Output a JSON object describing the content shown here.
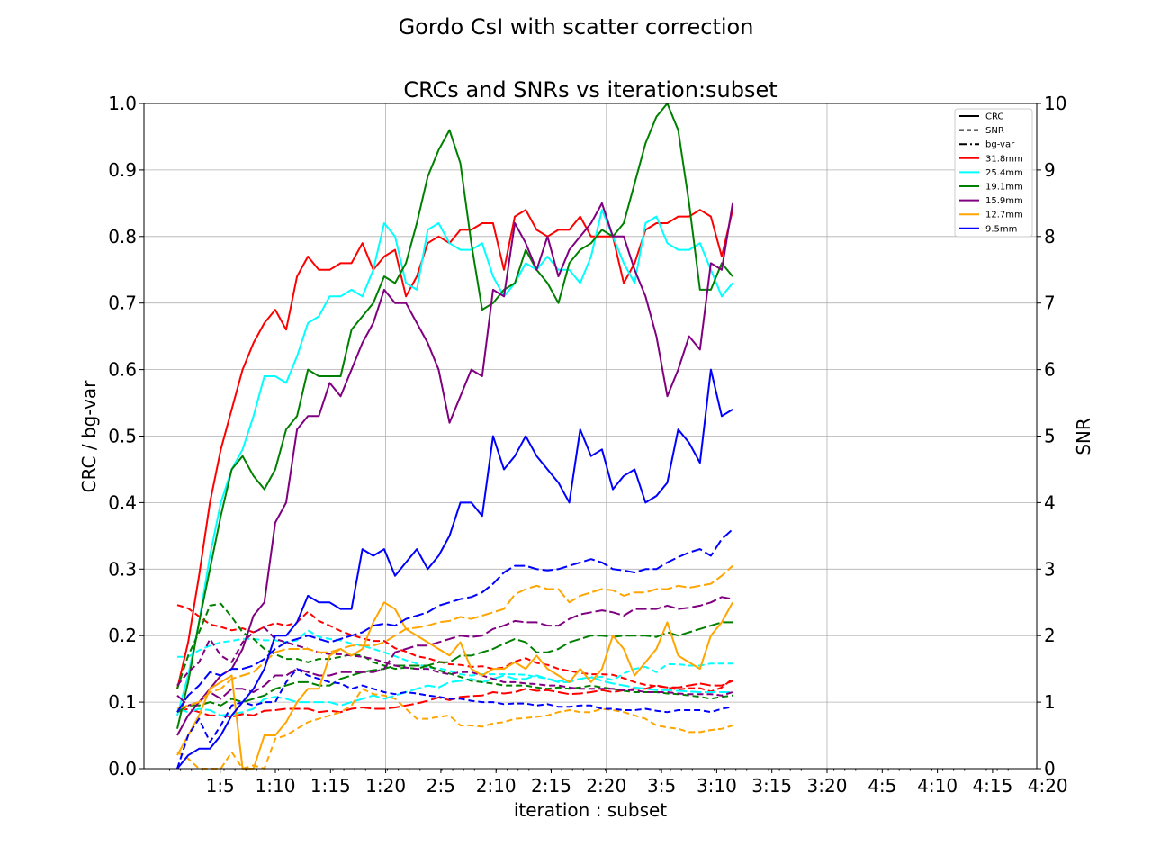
{
  "chart_data": {
    "suptitle": "Gordo CsI with scatter correction",
    "title": "CRCs and SNRs vs iteration:subset",
    "xlabel": "iteration : subset",
    "ylabel_left": "CRC / bg-var",
    "ylabel_right": "SNR",
    "ylim_left": [
      0,
      1
    ],
    "ylim_right": [
      0,
      10
    ],
    "yticks_left": [
      "0.0",
      "0.1",
      "0.2",
      "0.3",
      "0.4",
      "0.5",
      "0.6",
      "0.7",
      "0.8",
      "0.9",
      "1.0"
    ],
    "yticks_right": [
      "0",
      "1",
      "2",
      "3",
      "4",
      "5",
      "6",
      "7",
      "8",
      "9",
      "10"
    ],
    "xtick_labels": [
      "1:5",
      "1:10",
      "1:15",
      "1:20",
      "2:5",
      "2:10",
      "2:15",
      "2:20",
      "3:5",
      "3:10",
      "3:15",
      "3:20",
      "4:5",
      "4:10",
      "4:15",
      "4:20"
    ],
    "grid": true,
    "legend_position": "top-right",
    "legend_style_entries": [
      {
        "label": "CRC",
        "dash": "solid"
      },
      {
        "label": "SNR",
        "dash": "dashed"
      },
      {
        "label": "bg-var",
        "dash": "dashdot"
      }
    ],
    "series": [
      {
        "name": "31.8mm",
        "color": "#ff0000",
        "crc": [
          0.12,
          0.19,
          0.29,
          0.4,
          0.48,
          0.54,
          0.6,
          0.64,
          0.67,
          0.69,
          0.66,
          0.74,
          0.77,
          0.75,
          0.75,
          0.76,
          0.76,
          0.79,
          0.75,
          0.77,
          0.78,
          0.71,
          0.74,
          0.79,
          0.8,
          0.79,
          0.81,
          0.81,
          0.82,
          0.82,
          0.75,
          0.83,
          0.84,
          0.81,
          0.8,
          0.81,
          0.81,
          0.83,
          0.8,
          0.8,
          0.8,
          0.73,
          0.76,
          0.81,
          0.82,
          0.82,
          0.83,
          0.83,
          0.84,
          0.83,
          0.77,
          0.84
        ],
        "snr": [
          2.46,
          2.41,
          2.29,
          2.17,
          2.13,
          2.08,
          2.11,
          2.05,
          2.13,
          2.19,
          2.15,
          2.2,
          2.36,
          2.22,
          2.15,
          2.07,
          2.01,
          1.96,
          1.92,
          1.92,
          1.81,
          1.76,
          1.69,
          1.66,
          1.61,
          1.57,
          1.56,
          1.53,
          1.54,
          1.5,
          1.52,
          1.61,
          1.66,
          1.59,
          1.56,
          1.5,
          1.47,
          1.44,
          1.42,
          1.42,
          1.41,
          1.36,
          1.3,
          1.26,
          1.24,
          1.22,
          1.19,
          1.21,
          1.21,
          1.16,
          1.22,
          1.35
        ],
        "bgvar": [
          0.085,
          0.09,
          0.085,
          0.08,
          0.08,
          0.078,
          0.082,
          0.08,
          0.087,
          0.088,
          0.09,
          0.09,
          0.09,
          0.085,
          0.087,
          0.085,
          0.09,
          0.092,
          0.09,
          0.09,
          0.092,
          0.095,
          0.098,
          0.102,
          0.107,
          0.103,
          0.108,
          0.109,
          0.11,
          0.115,
          0.113,
          0.115,
          0.12,
          0.117,
          0.118,
          0.115,
          0.112,
          0.113,
          0.115,
          0.118,
          0.115,
          0.118,
          0.12,
          0.12,
          0.125,
          0.122,
          0.122,
          0.125,
          0.128,
          0.125,
          0.125,
          0.132
        ]
      },
      {
        "name": "25.4mm",
        "color": "#00ffff",
        "crc": [
          0.08,
          0.14,
          0.22,
          0.32,
          0.4,
          0.45,
          0.48,
          0.53,
          0.59,
          0.59,
          0.58,
          0.62,
          0.67,
          0.68,
          0.71,
          0.71,
          0.72,
          0.71,
          0.75,
          0.82,
          0.8,
          0.73,
          0.72,
          0.81,
          0.82,
          0.79,
          0.78,
          0.78,
          0.79,
          0.74,
          0.71,
          0.73,
          0.76,
          0.75,
          0.77,
          0.75,
          0.75,
          0.73,
          0.77,
          0.84,
          0.8,
          0.76,
          0.73,
          0.82,
          0.83,
          0.79,
          0.78,
          0.78,
          0.79,
          0.75,
          0.71,
          0.73
        ],
        "snr": [
          1.68,
          1.68,
          1.78,
          1.85,
          1.9,
          1.92,
          1.95,
          1.95,
          1.93,
          1.93,
          1.9,
          1.93,
          2.08,
          1.98,
          1.95,
          1.93,
          1.88,
          1.85,
          1.8,
          1.75,
          1.69,
          1.63,
          1.58,
          1.52,
          1.51,
          1.47,
          1.42,
          1.4,
          1.42,
          1.42,
          1.42,
          1.42,
          1.41,
          1.38,
          1.35,
          1.32,
          1.32,
          1.35,
          1.37,
          1.38,
          1.33,
          1.43,
          1.5,
          1.53,
          1.45,
          1.57,
          1.57,
          1.55,
          1.55,
          1.58,
          1.58,
          1.58
        ],
        "bgvar": [
          0.09,
          0.085,
          0.09,
          0.088,
          0.08,
          0.082,
          0.085,
          0.09,
          0.105,
          0.108,
          0.105,
          0.1,
          0.1,
          0.1,
          0.1,
          0.095,
          0.1,
          0.105,
          0.11,
          0.105,
          0.11,
          0.115,
          0.12,
          0.125,
          0.122,
          0.13,
          0.132,
          0.135,
          0.13,
          0.135,
          0.14,
          0.135,
          0.135,
          0.14,
          0.135,
          0.13,
          0.13,
          0.135,
          0.138,
          0.132,
          0.128,
          0.125,
          0.122,
          0.12,
          0.118,
          0.118,
          0.117,
          0.116,
          0.115,
          0.115,
          0.115,
          0.115
        ]
      },
      {
        "name": "19.1mm",
        "color": "#008000",
        "crc": [
          0.06,
          0.13,
          0.22,
          0.3,
          0.38,
          0.45,
          0.47,
          0.44,
          0.42,
          0.45,
          0.51,
          0.53,
          0.6,
          0.59,
          0.59,
          0.59,
          0.66,
          0.68,
          0.7,
          0.74,
          0.73,
          0.76,
          0.82,
          0.89,
          0.93,
          0.96,
          0.91,
          0.79,
          0.69,
          0.7,
          0.72,
          0.73,
          0.78,
          0.75,
          0.73,
          0.7,
          0.76,
          0.78,
          0.79,
          0.81,
          0.8,
          0.82,
          0.88,
          0.94,
          0.98,
          1.0,
          0.96,
          0.85,
          0.72,
          0.72,
          0.76,
          0.74
        ],
        "snr": [
          1.2,
          1.7,
          2.05,
          2.45,
          2.48,
          2.28,
          2.05,
          1.95,
          1.8,
          1.72,
          1.65,
          1.65,
          1.6,
          1.65,
          1.65,
          1.68,
          1.72,
          1.7,
          1.6,
          1.55,
          1.5,
          1.52,
          1.5,
          1.55,
          1.48,
          1.43,
          1.38,
          1.32,
          1.3,
          1.28,
          1.25,
          1.25,
          1.25,
          1.22,
          1.2,
          1.22,
          1.2,
          1.22,
          1.25,
          1.22,
          1.2,
          1.17,
          1.15,
          1.15,
          1.15,
          1.13,
          1.12,
          1.1,
          1.08,
          1.05,
          1.08,
          1.1
        ],
        "bgvar": [
          0.085,
          0.095,
          0.095,
          0.1,
          0.095,
          0.105,
          0.1,
          0.105,
          0.11,
          0.12,
          0.125,
          0.13,
          0.13,
          0.125,
          0.125,
          0.135,
          0.14,
          0.145,
          0.148,
          0.15,
          0.155,
          0.155,
          0.155,
          0.155,
          0.16,
          0.16,
          0.17,
          0.17,
          0.175,
          0.18,
          0.188,
          0.195,
          0.19,
          0.175,
          0.175,
          0.18,
          0.19,
          0.195,
          0.2,
          0.2,
          0.198,
          0.2,
          0.2,
          0.2,
          0.198,
          0.205,
          0.2,
          0.205,
          0.21,
          0.215,
          0.22,
          0.22
        ]
      },
      {
        "name": "15.9mm",
        "color": "#800080",
        "crc": [
          0.05,
          0.08,
          0.1,
          0.12,
          0.14,
          0.15,
          0.18,
          0.23,
          0.25,
          0.37,
          0.4,
          0.51,
          0.53,
          0.53,
          0.58,
          0.56,
          0.6,
          0.64,
          0.67,
          0.72,
          0.7,
          0.7,
          0.67,
          0.64,
          0.6,
          0.52,
          0.56,
          0.6,
          0.59,
          0.72,
          0.71,
          0.82,
          0.79,
          0.75,
          0.8,
          0.74,
          0.78,
          0.8,
          0.82,
          0.85,
          0.8,
          0.8,
          0.75,
          0.71,
          0.65,
          0.56,
          0.6,
          0.65,
          0.63,
          0.76,
          0.75,
          0.85
        ],
        "snr": [
          1.25,
          1.45,
          1.6,
          1.95,
          1.7,
          1.6,
          1.9,
          2.05,
          2.12,
          1.95,
          1.9,
          1.85,
          1.8,
          1.75,
          1.72,
          1.72,
          1.7,
          1.68,
          1.65,
          1.6,
          1.55,
          1.52,
          1.5,
          1.5,
          1.45,
          1.42,
          1.45,
          1.45,
          1.4,
          1.35,
          1.3,
          1.3,
          1.28,
          1.27,
          1.25,
          1.25,
          1.22,
          1.2,
          1.2,
          1.2,
          1.2,
          1.18,
          1.18,
          1.15,
          1.15,
          1.15,
          1.13,
          1.12,
          1.12,
          1.12,
          1.1,
          1.15
        ],
        "bgvar": [
          0.11,
          0.095,
          0.1,
          0.115,
          0.105,
          0.12,
          0.12,
          0.115,
          0.125,
          0.14,
          0.14,
          0.15,
          0.145,
          0.14,
          0.14,
          0.145,
          0.145,
          0.145,
          0.145,
          0.15,
          0.175,
          0.18,
          0.185,
          0.185,
          0.19,
          0.195,
          0.2,
          0.198,
          0.2,
          0.21,
          0.215,
          0.222,
          0.22,
          0.22,
          0.215,
          0.215,
          0.225,
          0.232,
          0.235,
          0.238,
          0.235,
          0.23,
          0.24,
          0.24,
          0.24,
          0.245,
          0.24,
          0.242,
          0.245,
          0.25,
          0.258,
          0.255
        ]
      },
      {
        "name": "12.7mm",
        "color": "#ffa500",
        "crc": [
          0.02,
          0.05,
          0.08,
          0.12,
          0.13,
          0.14,
          0.0,
          0.0,
          0.05,
          0.05,
          0.07,
          0.1,
          0.12,
          0.12,
          0.17,
          0.18,
          0.17,
          0.18,
          0.22,
          0.25,
          0.24,
          0.21,
          0.2,
          0.19,
          0.18,
          0.17,
          0.19,
          0.15,
          0.14,
          0.15,
          0.15,
          0.16,
          0.15,
          0.17,
          0.15,
          0.14,
          0.13,
          0.15,
          0.13,
          0.15,
          0.2,
          0.18,
          0.14,
          0.16,
          0.18,
          0.22,
          0.17,
          0.16,
          0.15,
          0.2,
          0.22,
          0.25
        ],
        "snr": [
          0.25,
          0.15,
          0.0,
          0.0,
          0.0,
          0.25,
          0.0,
          0.05,
          0.0,
          0.45,
          0.5,
          0.6,
          0.7,
          0.75,
          0.8,
          0.85,
          0.95,
          1.2,
          1.12,
          1.1,
          1.05,
          0.9,
          0.75,
          0.75,
          0.78,
          0.8,
          0.65,
          0.65,
          0.63,
          0.68,
          0.7,
          0.75,
          0.76,
          0.78,
          0.8,
          0.85,
          0.88,
          0.85,
          0.85,
          0.9,
          0.88,
          0.85,
          0.8,
          0.75,
          0.65,
          0.62,
          0.6,
          0.55,
          0.55,
          0.58,
          0.6,
          0.65
        ],
        "bgvar": [
          0.09,
          0.095,
          0.1,
          0.115,
          0.12,
          0.135,
          0.14,
          0.145,
          0.16,
          0.175,
          0.18,
          0.18,
          0.18,
          0.175,
          0.175,
          0.18,
          0.185,
          0.185,
          0.185,
          0.19,
          0.2,
          0.21,
          0.212,
          0.215,
          0.22,
          0.222,
          0.228,
          0.225,
          0.23,
          0.235,
          0.24,
          0.262,
          0.27,
          0.275,
          0.27,
          0.27,
          0.25,
          0.26,
          0.265,
          0.27,
          0.268,
          0.26,
          0.265,
          0.265,
          0.27,
          0.27,
          0.275,
          0.272,
          0.275,
          0.278,
          0.29,
          0.305
        ]
      },
      {
        "name": "9.5mm",
        "color": "#0000ff",
        "crc": [
          0.0,
          0.02,
          0.03,
          0.03,
          0.05,
          0.08,
          0.1,
          0.12,
          0.15,
          0.2,
          0.2,
          0.22,
          0.26,
          0.25,
          0.25,
          0.24,
          0.24,
          0.33,
          0.32,
          0.33,
          0.29,
          0.31,
          0.33,
          0.3,
          0.32,
          0.35,
          0.4,
          0.4,
          0.38,
          0.5,
          0.45,
          0.47,
          0.5,
          0.47,
          0.45,
          0.43,
          0.4,
          0.51,
          0.47,
          0.48,
          0.42,
          0.44,
          0.45,
          0.4,
          0.41,
          0.43,
          0.51,
          0.49,
          0.46,
          0.6,
          0.53,
          0.54
        ],
        "snr": [
          0.0,
          0.5,
          0.75,
          0.4,
          0.65,
          0.95,
          1.0,
          0.95,
          1.0,
          1.0,
          1.3,
          1.5,
          1.4,
          1.35,
          1.3,
          1.28,
          1.2,
          1.25,
          1.2,
          1.15,
          1.12,
          1.15,
          1.13,
          1.1,
          1.08,
          1.05,
          1.05,
          1.02,
          1.0,
          1.0,
          0.97,
          0.98,
          0.98,
          0.95,
          0.97,
          0.93,
          0.93,
          0.95,
          0.95,
          0.9,
          0.9,
          0.88,
          0.88,
          0.9,
          0.87,
          0.85,
          0.88,
          0.88,
          0.88,
          0.85,
          0.9,
          0.93
        ],
        "bgvar": [
          0.085,
          0.11,
          0.125,
          0.145,
          0.14,
          0.15,
          0.15,
          0.155,
          0.165,
          0.18,
          0.19,
          0.195,
          0.2,
          0.195,
          0.19,
          0.195,
          0.2,
          0.205,
          0.215,
          0.218,
          0.215,
          0.225,
          0.23,
          0.235,
          0.245,
          0.25,
          0.255,
          0.258,
          0.265,
          0.278,
          0.295,
          0.305,
          0.305,
          0.3,
          0.298,
          0.3,
          0.305,
          0.31,
          0.315,
          0.31,
          0.3,
          0.298,
          0.295,
          0.3,
          0.3,
          0.31,
          0.318,
          0.325,
          0.33,
          0.32,
          0.345,
          0.36
        ]
      }
    ]
  }
}
